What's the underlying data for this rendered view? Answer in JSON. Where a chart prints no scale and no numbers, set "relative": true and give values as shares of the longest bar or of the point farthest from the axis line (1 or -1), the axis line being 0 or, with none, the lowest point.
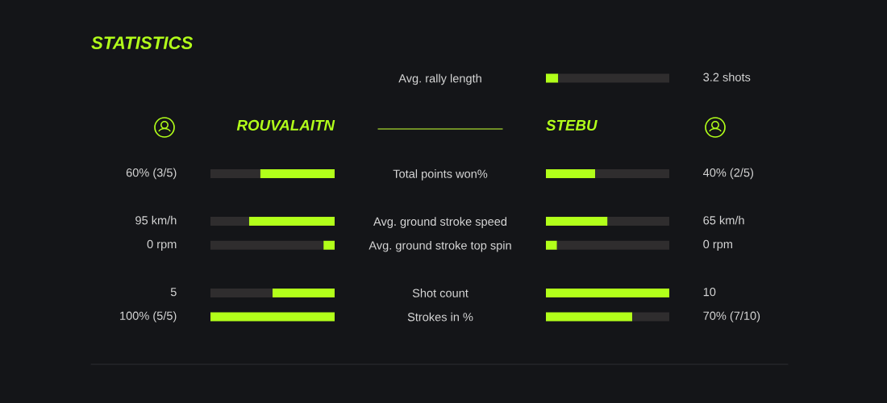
{
  "chart_data": [
    {
      "type": "bar",
      "orientation": "horizontal",
      "stacked": true,
      "relative": true,
      "title": "STATISTICS",
      "tick_labels": "y",
      "categories": [
        "Avg. rally length",
        null,
        null,
        null,
        "Total points won%",
        null,
        "Avg. ground stroke speed",
        "Avg. ground stroke top spin",
        null,
        "Shot count",
        "Strokes in %"
      ],
      "series": [
        {
          "name": "ROUVALAITN",
          "color": "#b2ff1a",
          "values": [
            null,
            null,
            null,
            null,
            0.6,
            null,
            0.69,
            0.09,
            null,
            0.5,
            1.0
          ]
        },
        {
          "color": "#2f2d2e",
          "values": [
            null,
            null,
            null,
            null,
            0.4,
            null,
            0.31,
            0.91,
            null,
            0.5,
            null
          ]
        }
      ],
      "annotations": [
        "60% (3/5)",
        "95 km/h",
        "0 rpm",
        "5",
        "100% (5/5)"
      ]
    },
    {
      "type": "bar",
      "orientation": "horizontal",
      "stacked": true,
      "relative": true,
      "tick_labels": false,
      "categories": [
        null,
        null,
        null,
        null,
        null,
        null,
        null,
        null,
        null,
        null,
        null
      ],
      "series": [
        {
          "name": "STEBU",
          "color": "#b2ff1a",
          "values": [
            0.1,
            null,
            null,
            null,
            0.4,
            null,
            0.5,
            0.09,
            null,
            1.0,
            0.7
          ]
        },
        {
          "color": "#2f2d2e",
          "values": [
            0.9,
            null,
            null,
            null,
            0.6,
            null,
            0.5,
            0.91,
            null,
            null,
            0.3
          ]
        }
      ],
      "annotations": [
        "3.2 shots",
        "40% (2/5)",
        "65 km/h",
        "0 rpm",
        "10",
        "70% (7/10)"
      ]
    }
  ]
}
